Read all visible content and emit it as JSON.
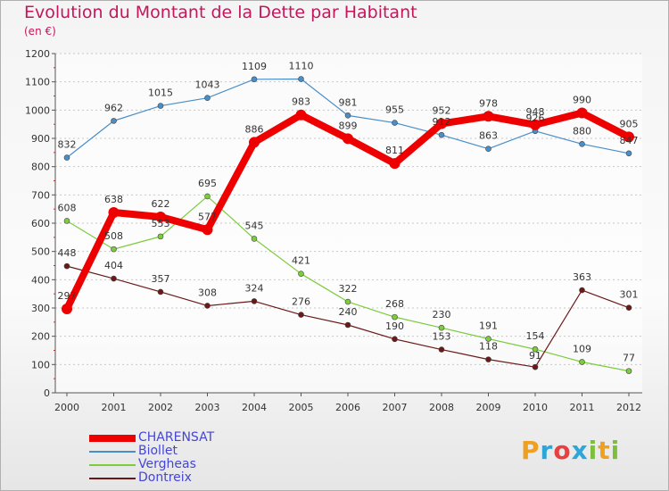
{
  "header": {
    "title": "Evolution du Montant de la Dette par Habitant",
    "subtitle": "(en €)"
  },
  "logo": {
    "text": "Proxiti"
  },
  "chart_data": {
    "type": "line",
    "title": "Evolution du Montant de la Dette par Habitant",
    "subtitle": "(en €)",
    "xlabel": "",
    "ylabel": "",
    "x": [
      "2000",
      "2001",
      "2002",
      "2003",
      "2004",
      "2005",
      "2006",
      "2007",
      "2008",
      "2009",
      "2010",
      "2011",
      "2012"
    ],
    "ylim": [
      0,
      1200
    ],
    "yticks": [
      0,
      100,
      200,
      300,
      400,
      500,
      600,
      700,
      800,
      900,
      1000,
      1100,
      1200
    ],
    "grid": "horizontal",
    "legend_position": "bottom-left",
    "series": [
      {
        "name": "CHARENSAT",
        "color": "#ee0000",
        "values": [
          297,
          638,
          622,
          577,
          886,
          983,
          899,
          811,
          952,
          978,
          948,
          990,
          905
        ],
        "labels": [
          "297",
          "638",
          "622",
          "577",
          "886",
          "983",
          "899",
          "811",
          "952",
          "978",
          "948",
          "990",
          "905"
        ]
      },
      {
        "name": "Biollet",
        "color": "#4a8ec8",
        "values": [
          832,
          962,
          1015,
          1043,
          1109,
          1110,
          981,
          955,
          912,
          863,
          926,
          880,
          847
        ],
        "labels": [
          "832",
          "962",
          "1015",
          "1043",
          "1109",
          "1110",
          "981",
          "955",
          "912",
          "863",
          "926",
          "880",
          "847"
        ]
      },
      {
        "name": "Vergheas",
        "color": "#7ccc3c",
        "values": [
          608,
          508,
          553,
          695,
          545,
          421,
          322,
          268,
          230,
          191,
          154,
          109,
          77
        ],
        "labels": [
          "608",
          "508",
          "553",
          "695",
          "545",
          "421",
          "322",
          "268",
          "230",
          "191",
          "154",
          "109",
          "77"
        ]
      },
      {
        "name": "Dontreix",
        "color": "#6b1818",
        "values": [
          448,
          404,
          357,
          308,
          324,
          276,
          240,
          190,
          153,
          118,
          91,
          363,
          301
        ],
        "labels": [
          "448",
          "404",
          "357",
          "308",
          "324",
          "276",
          "240",
          "190",
          "153",
          "118",
          "91",
          "363",
          "301"
        ]
      }
    ]
  }
}
